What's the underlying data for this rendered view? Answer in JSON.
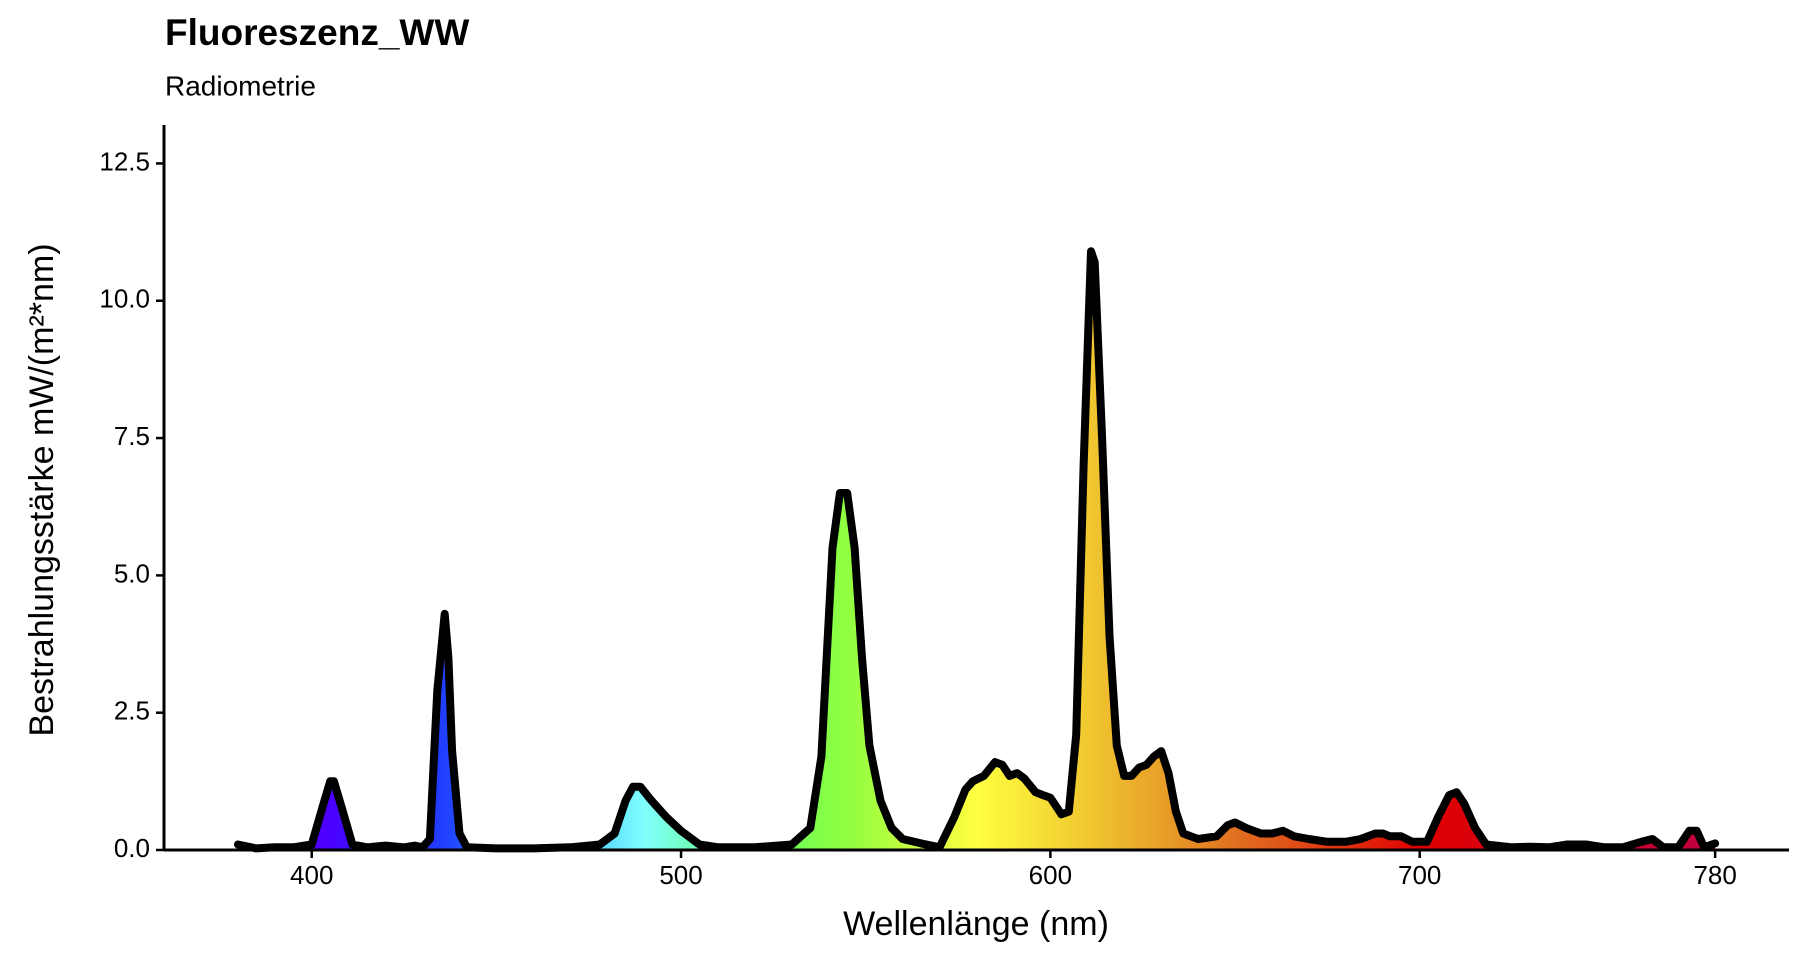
{
  "chart_data": {
    "type": "area",
    "title": "Fluoreszenz_WW",
    "subtitle": "Radiometrie",
    "xlabel": "Wellenlänge (nm)",
    "ylabel": "Bestrahlungsstärke  mW/(m²*nm)",
    "x": [
      380,
      385,
      390,
      395,
      400,
      403,
      405,
      406,
      408,
      411,
      415,
      420,
      425,
      428,
      430,
      432,
      434,
      436,
      437,
      438,
      440,
      442,
      450,
      460,
      470,
      478,
      482,
      485,
      487,
      489,
      492,
      496,
      500,
      505,
      510,
      520,
      530,
      535,
      538,
      541,
      543,
      545,
      547,
      549,
      551,
      554,
      557,
      560,
      565,
      570,
      574,
      577,
      579,
      582,
      585,
      587,
      589,
      591,
      593,
      596,
      598,
      600,
      602,
      603,
      605,
      607,
      609,
      611,
      612,
      614,
      616,
      618,
      620,
      622,
      624,
      626,
      628,
      630,
      632,
      634,
      636,
      640,
      645,
      648,
      650,
      653,
      657,
      660,
      663,
      666,
      670,
      675,
      680,
      684,
      688,
      690,
      692,
      695,
      698,
      702,
      705,
      708,
      710,
      712,
      715,
      718,
      725,
      730,
      735,
      740,
      745,
      750,
      755,
      760,
      763,
      766,
      770,
      773,
      775,
      777,
      780
    ],
    "values": [
      0.1,
      0.03,
      0.05,
      0.05,
      0.1,
      0.8,
      1.25,
      1.25,
      0.8,
      0.1,
      0.05,
      0.08,
      0.05,
      0.08,
      0.05,
      0.2,
      2.9,
      4.3,
      3.5,
      1.8,
      0.3,
      0.05,
      0.03,
      0.03,
      0.05,
      0.1,
      0.3,
      0.9,
      1.15,
      1.15,
      0.9,
      0.6,
      0.35,
      0.1,
      0.05,
      0.05,
      0.1,
      0.4,
      1.7,
      5.5,
      6.5,
      6.5,
      5.5,
      3.5,
      1.9,
      0.9,
      0.4,
      0.2,
      0.12,
      0.05,
      0.6,
      1.1,
      1.25,
      1.35,
      1.6,
      1.55,
      1.35,
      1.4,
      1.3,
      1.05,
      1.0,
      0.95,
      0.75,
      0.65,
      0.7,
      2.1,
      7.0,
      10.9,
      10.7,
      7.5,
      3.9,
      1.9,
      1.35,
      1.35,
      1.5,
      1.55,
      1.7,
      1.8,
      1.4,
      0.7,
      0.3,
      0.2,
      0.25,
      0.45,
      0.5,
      0.4,
      0.3,
      0.3,
      0.35,
      0.25,
      0.2,
      0.15,
      0.15,
      0.2,
      0.3,
      0.3,
      0.25,
      0.25,
      0.15,
      0.15,
      0.6,
      1.0,
      1.05,
      0.85,
      0.4,
      0.1,
      0.05,
      0.06,
      0.05,
      0.1,
      0.1,
      0.05,
      0.05,
      0.15,
      0.2,
      0.05,
      0.05,
      0.35,
      0.35,
      0.05,
      0.12
    ],
    "line_color": "#000000",
    "fill_stops": [
      [
        380,
        "#6a00ff"
      ],
      [
        405,
        "#4a00ff"
      ],
      [
        436,
        "#2040ff"
      ],
      [
        470,
        "#40c0ff"
      ],
      [
        490,
        "#80ffff"
      ],
      [
        520,
        "#60ff60"
      ],
      [
        545,
        "#90ff40"
      ],
      [
        580,
        "#ffff40"
      ],
      [
        610,
        "#f0c830"
      ],
      [
        630,
        "#e8a028"
      ],
      [
        650,
        "#e07020"
      ],
      [
        680,
        "#e03010"
      ],
      [
        700,
        "#e00000"
      ],
      [
        780,
        "#c00040"
      ]
    ],
    "xlim": [
      360,
      800
    ],
    "ylim": [
      0,
      13.2
    ],
    "xticks": [
      400,
      500,
      600,
      700,
      780
    ],
    "yticks": [
      {
        "value": 0,
        "label": "0.0"
      },
      2.5,
      {
        "value": 5,
        "label": "5.0"
      },
      7.5,
      {
        "value": 10,
        "label": "10.0"
      },
      12.5
    ]
  }
}
